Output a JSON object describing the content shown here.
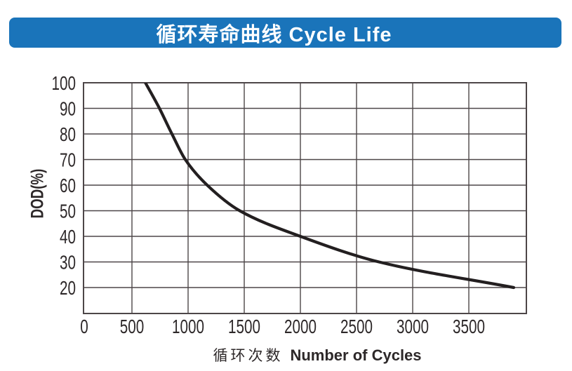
{
  "banner": {
    "title": "循环寿命曲线 Cycle Life",
    "bg_color": "#1a74ba",
    "text_color": "#ffffff"
  },
  "chart_data": {
    "type": "line",
    "title": "循环寿命曲线 Cycle Life",
    "xlabel_cn": "循环次数",
    "xlabel_en": "Number of Cycles",
    "ylabel": "DOD(%)",
    "x_ticks": [
      0,
      500,
      1000,
      1500,
      2000,
      2500,
      3000,
      3500
    ],
    "y_ticks": [
      20,
      30,
      40,
      50,
      60,
      70,
      80,
      90,
      100
    ],
    "xlim": [
      0,
      4000
    ],
    "ylim": [
      20,
      100
    ],
    "grid": true,
    "legend": false,
    "series": [
      {
        "name": "cycle-life-curve",
        "points": [
          [
            620,
            100
          ],
          [
            745,
            90
          ],
          [
            856,
            80
          ],
          [
            975,
            70
          ],
          [
            1170,
            60
          ],
          [
            1460,
            50
          ],
          [
            2000,
            40
          ],
          [
            2700,
            30
          ],
          [
            3900,
            20
          ]
        ]
      }
    ],
    "line_color": "#231f20",
    "grid_color": "#4d4648",
    "tick_color": "#2d2829"
  }
}
